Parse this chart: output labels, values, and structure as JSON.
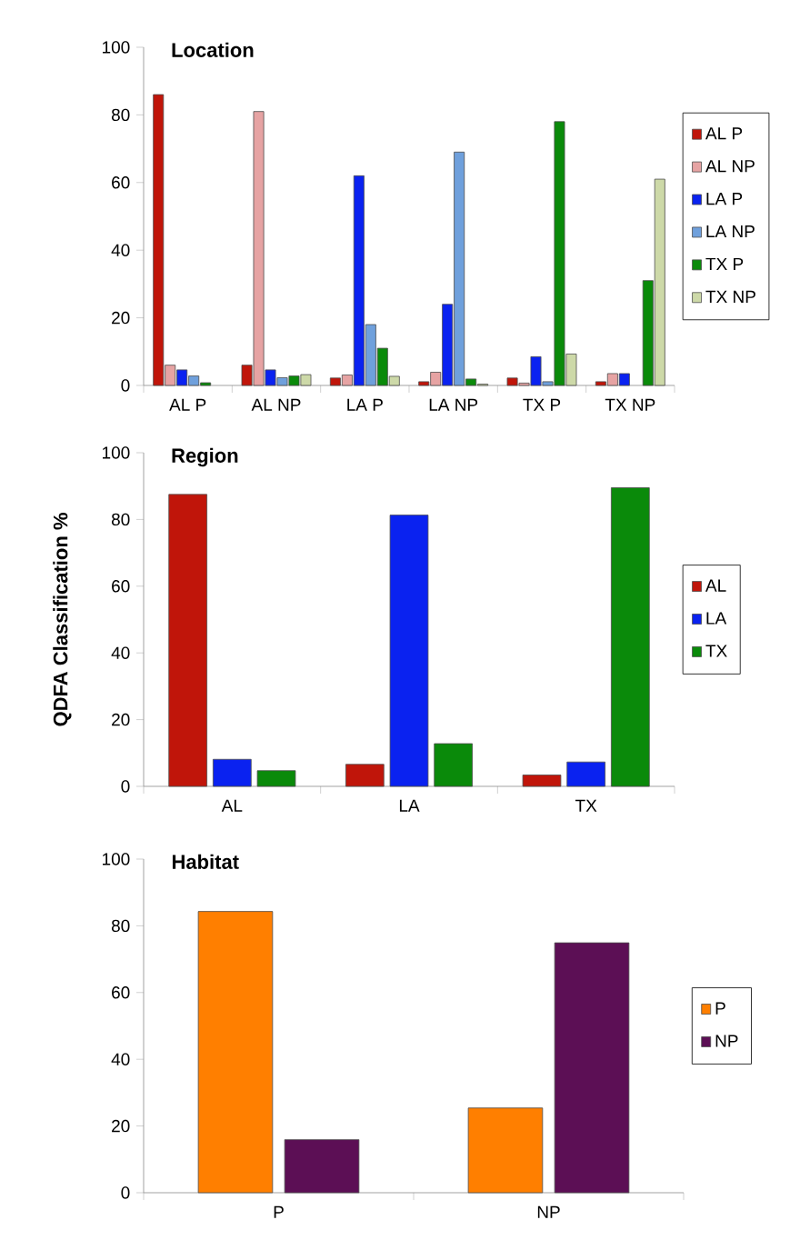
{
  "chart_data": [
    {
      "type": "bar",
      "title": "Location",
      "categories": [
        "AL P",
        "AL NP",
        "LA P",
        "LA NP",
        "TX P",
        "TX NP"
      ],
      "ylim": [
        0,
        100
      ],
      "yticks": [
        0,
        20,
        40,
        60,
        80,
        100
      ],
      "legend": "right",
      "series": [
        {
          "name": "AL P",
          "color": "#c0150a",
          "values": [
            86,
            6,
            2.2,
            1.1,
            2.2,
            1.1
          ]
        },
        {
          "name": "AL NP",
          "color": "#e6a3a3",
          "values": [
            6,
            81,
            3.1,
            3.9,
            0.7,
            3.5
          ]
        },
        {
          "name": "LA P",
          "color": "#0a22f0",
          "values": [
            4.6,
            4.6,
            62,
            24,
            8.5,
            3.5
          ]
        },
        {
          "name": "LA NP",
          "color": "#6fa0dc",
          "values": [
            2.8,
            2.3,
            18,
            69,
            1.1,
            null
          ]
        },
        {
          "name": "TX P",
          "color": "#0a8a0a",
          "values": [
            0.8,
            2.8,
            11,
            1.9,
            78,
            31
          ]
        },
        {
          "name": "TX NP",
          "color": "#cdd9a8",
          "values": [
            null,
            3.2,
            2.7,
            0.4,
            9.3,
            61
          ]
        }
      ]
    },
    {
      "type": "bar",
      "title": "Region",
      "ylabel": "QDFA Classification %",
      "categories": [
        "AL",
        "LA",
        "TX"
      ],
      "ylim": [
        0,
        100
      ],
      "yticks": [
        0,
        20,
        40,
        60,
        80,
        100
      ],
      "legend": "right",
      "series": [
        {
          "name": "AL",
          "color": "#c0150a",
          "values": [
            87.5,
            6.6,
            3.4
          ]
        },
        {
          "name": "LA",
          "color": "#0a22f0",
          "values": [
            8.1,
            81.3,
            7.3
          ]
        },
        {
          "name": "TX",
          "color": "#0a8a0a",
          "values": [
            4.7,
            12.8,
            89.5
          ]
        }
      ]
    },
    {
      "type": "bar",
      "title": "Habitat",
      "categories": [
        "P",
        "NP"
      ],
      "ylim": [
        0,
        100
      ],
      "yticks": [
        0,
        20,
        40,
        60,
        80,
        100
      ],
      "legend": "right",
      "series": [
        {
          "name": "P",
          "color": "#ff7f00",
          "values": [
            84.3,
            25.4
          ]
        },
        {
          "name": "NP",
          "color": "#5c0f55",
          "values": [
            15.9,
            74.9
          ]
        }
      ]
    }
  ]
}
